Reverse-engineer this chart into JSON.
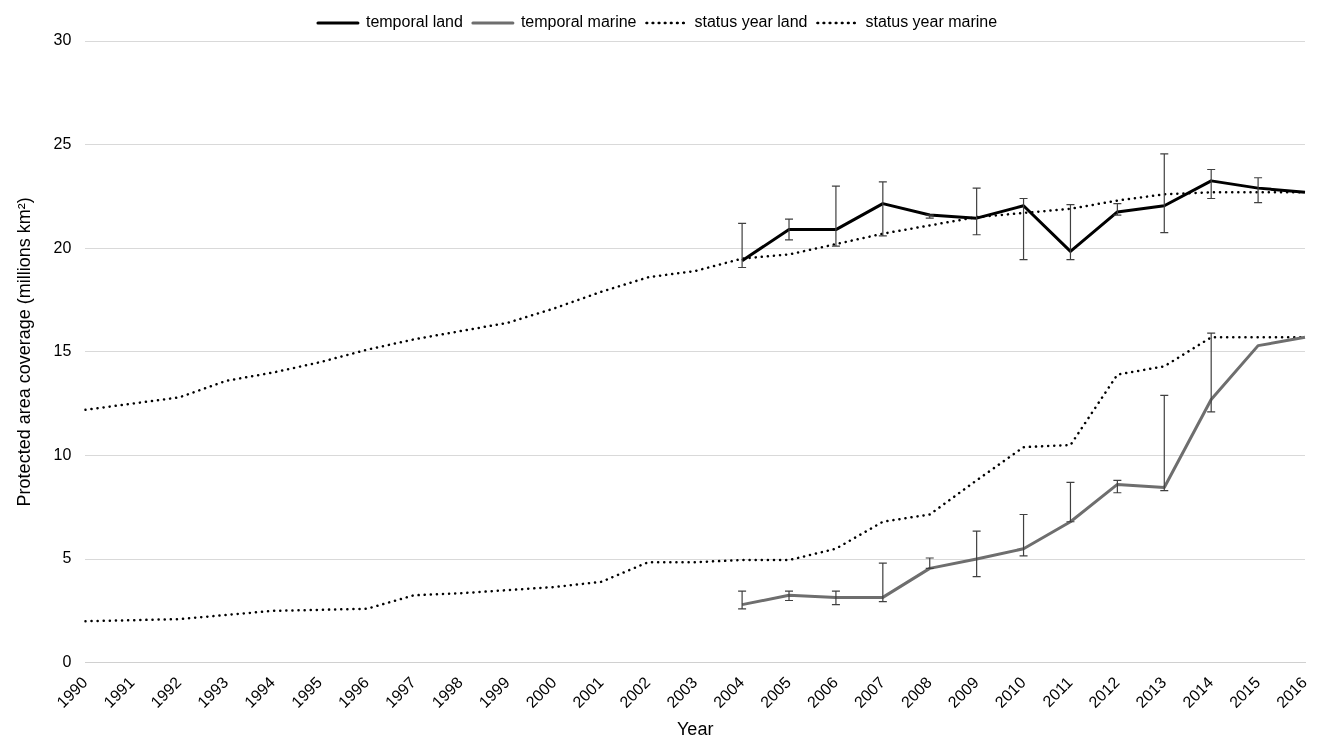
{
  "chart_data": {
    "type": "line",
    "xlabel": "Year",
    "ylabel": "Protected area coverage (millions km²)",
    "categories": [
      "1990",
      "1991",
      "1992",
      "1993",
      "1994",
      "1995",
      "1996",
      "1997",
      "1998",
      "1999",
      "2000",
      "2001",
      "2002",
      "2003",
      "2004",
      "2005",
      "2006",
      "2007",
      "2008",
      "2009",
      "2010",
      "2011",
      "2012",
      "2013",
      "2014",
      "2015",
      "2016"
    ],
    "ylim": [
      0,
      30
    ],
    "yticks": [
      0,
      5,
      10,
      15,
      20,
      25,
      30
    ],
    "grid": "y",
    "legend": "top",
    "marker": "none",
    "series": [
      {
        "name": "temporal land",
        "color": "#000000",
        "line_style": "solid",
        "values": [
          null,
          null,
          null,
          null,
          null,
          null,
          null,
          null,
          null,
          null,
          null,
          null,
          null,
          null,
          19.4,
          20.9,
          20.9,
          22.15,
          21.6,
          21.45,
          22.05,
          19.85,
          21.75,
          22.05,
          23.25,
          22.9,
          22.7
        ],
        "errors": [
          null,
          null,
          null,
          null,
          null,
          null,
          null,
          null,
          null,
          null,
          null,
          null,
          null,
          null,
          [
            19.07,
            21.2
          ],
          [
            20.4,
            21.4
          ],
          [
            20.1,
            23.0
          ],
          [
            20.6,
            23.2
          ],
          [
            21.45,
            21.6
          ],
          [
            20.65,
            22.9
          ],
          [
            19.45,
            22.4
          ],
          [
            19.45,
            22.1
          ],
          [
            21.6,
            22.15
          ],
          [
            20.75,
            24.55
          ],
          [
            22.4,
            23.8
          ],
          [
            22.2,
            23.4
          ],
          null
        ]
      },
      {
        "name": "temporal marine",
        "color": "#6e6e6e",
        "line_style": "solid",
        "values": [
          null,
          null,
          null,
          null,
          null,
          null,
          null,
          null,
          null,
          null,
          null,
          null,
          null,
          null,
          2.8,
          3.25,
          3.15,
          3.15,
          4.55,
          5.0,
          5.5,
          6.8,
          8.6,
          8.45,
          12.7,
          15.3,
          15.7
        ],
        "errors": [
          null,
          null,
          null,
          null,
          null,
          null,
          null,
          null,
          null,
          null,
          null,
          null,
          null,
          null,
          [
            2.6,
            3.45
          ],
          [
            3.0,
            3.45
          ],
          [
            2.8,
            3.45
          ],
          [
            2.95,
            4.8
          ],
          [
            4.55,
            5.05
          ],
          [
            4.15,
            6.35
          ],
          [
            5.15,
            7.15
          ],
          [
            6.8,
            8.7
          ],
          [
            8.2,
            8.8
          ],
          [
            8.3,
            12.9
          ],
          [
            12.1,
            15.9
          ],
          null,
          null
        ]
      },
      {
        "name": "status year land",
        "color": "#000000",
        "line_style": "dotted",
        "values": [
          12.2,
          12.5,
          12.8,
          13.6,
          14.0,
          14.5,
          15.1,
          15.6,
          16.0,
          16.4,
          17.1,
          17.9,
          18.6,
          18.9,
          19.5,
          19.7,
          20.2,
          20.7,
          21.1,
          21.5,
          21.7,
          21.9,
          22.3,
          22.6,
          22.7,
          22.7,
          22.7
        ]
      },
      {
        "name": "status year marine",
        "color": "#000000",
        "line_style": "dotted",
        "values": [
          2.0,
          2.05,
          2.1,
          2.3,
          2.5,
          2.55,
          2.6,
          3.25,
          3.35,
          3.5,
          3.65,
          3.9,
          4.85,
          4.85,
          4.95,
          4.95,
          5.5,
          6.8,
          7.15,
          8.8,
          10.4,
          10.5,
          13.9,
          14.3,
          15.7,
          15.7,
          15.7
        ]
      }
    ]
  }
}
